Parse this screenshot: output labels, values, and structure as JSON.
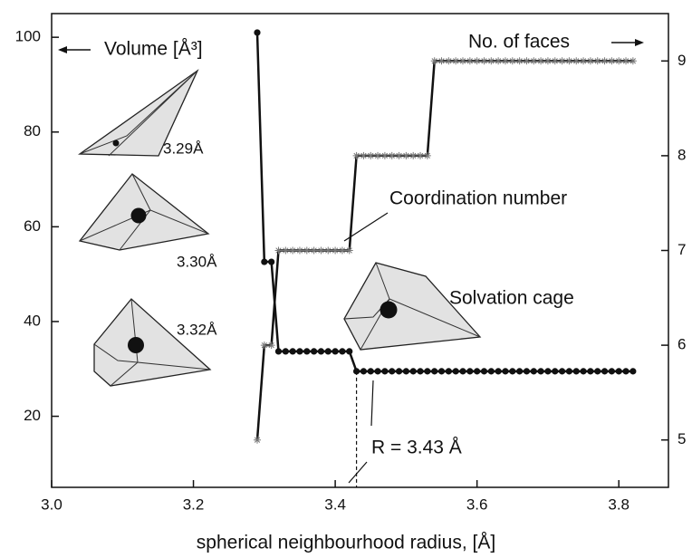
{
  "chart_data": {
    "type": "line",
    "x": [
      3.29,
      3.3,
      3.31,
      3.32,
      3.33,
      3.34,
      3.35,
      3.36,
      3.37,
      3.38,
      3.39,
      3.4,
      3.41,
      3.42,
      3.43,
      3.44,
      3.45,
      3.46,
      3.47,
      3.48,
      3.49,
      3.5,
      3.51,
      3.52,
      3.53,
      3.54,
      3.55,
      3.56,
      3.57,
      3.58,
      3.59,
      3.6,
      3.61,
      3.62,
      3.63,
      3.64,
      3.65,
      3.66,
      3.67,
      3.68,
      3.69,
      3.7,
      3.71,
      3.72,
      3.73,
      3.74,
      3.75,
      3.76,
      3.77,
      3.78,
      3.79,
      3.8,
      3.81,
      3.82
    ],
    "series": [
      {
        "name": "Volume [Å³]",
        "color": "#111111",
        "marker": "circle",
        "values": [
          101,
          52.6,
          52.6,
          33.7,
          33.7,
          33.7,
          33.7,
          33.7,
          33.7,
          33.7,
          33.7,
          33.7,
          33.7,
          33.7,
          29.5,
          29.5,
          29.5,
          29.5,
          29.5,
          29.5,
          29.5,
          29.5,
          29.5,
          29.5,
          29.5,
          29.5,
          29.5,
          29.5,
          29.5,
          29.5,
          29.5,
          29.5,
          29.5,
          29.5,
          29.5,
          29.5,
          29.5,
          29.5,
          29.5,
          29.5,
          29.5,
          29.5,
          29.5,
          29.5,
          29.5,
          29.5,
          29.5,
          29.5,
          29.5,
          29.5,
          29.5,
          29.5,
          29.5,
          29.5
        ]
      },
      {
        "name": "No. of faces",
        "color": "#777777",
        "marker": "asterisk",
        "axis": "y2",
        "values": [
          5,
          6,
          6,
          7,
          7,
          7,
          7,
          7,
          7,
          7,
          7,
          7,
          7,
          7,
          8,
          8,
          8,
          8,
          8,
          8,
          8,
          8,
          8,
          8,
          8,
          9,
          9,
          9,
          9,
          9,
          9,
          9,
          9,
          9,
          9,
          9,
          9,
          9,
          9,
          9,
          9,
          9,
          9,
          9,
          9,
          9,
          9,
          9,
          9,
          9,
          9,
          9,
          9,
          9
        ]
      }
    ],
    "x_label": "spherical neighbourhood radius,   [Å]",
    "xlim": [
      3.0,
      3.87
    ],
    "xticks": [
      {
        "value": 3.0,
        "label": "3.0"
      },
      3.2,
      3.4,
      3.6,
      3.8
    ],
    "ylim": [
      5,
      105
    ],
    "yticks": [
      20,
      40,
      60,
      80,
      100
    ],
    "y2lim": [
      4.5,
      9.5
    ],
    "y2ticks": [
      5,
      6,
      7,
      8,
      9
    ],
    "annotations": [
      "Coordination number",
      "Solvation cage",
      "R = 3.43 Å",
      "3.29Å",
      "3.30Å",
      "3.32Å"
    ]
  }
}
